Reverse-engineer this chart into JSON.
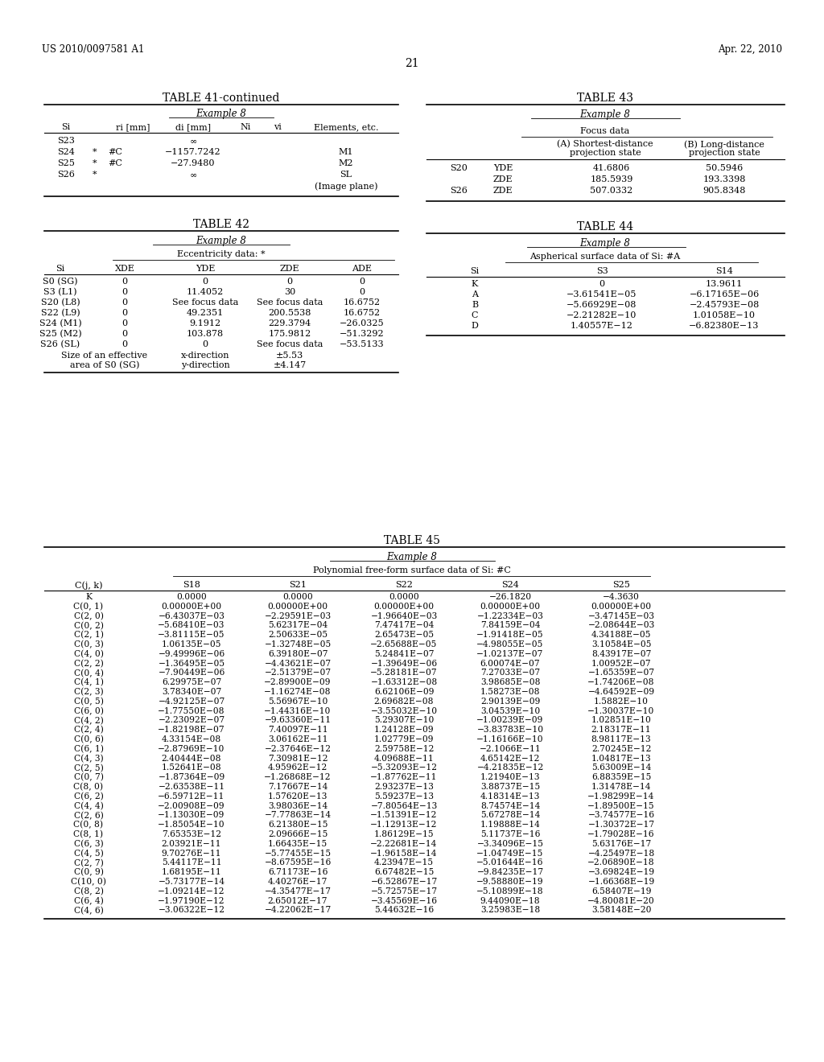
{
  "patent_left": "US 2010/0097581 A1",
  "patent_right": "Apr. 22, 2010",
  "page_number": "21",
  "bg": "#ffffff",
  "t41_rows": [
    [
      "S23",
      "",
      "",
      "∞",
      "",
      "",
      ""
    ],
    [
      "S24",
      "*",
      "#C",
      "−1157.7242",
      "",
      "",
      "M1"
    ],
    [
      "S25",
      "*",
      "#C",
      "−27.9480",
      "",
      "",
      "M2"
    ],
    [
      "S26",
      "*",
      "",
      "∞",
      "",
      "",
      "SL"
    ]
  ],
  "t42_rows": [
    [
      "S0 (SG)",
      "0",
      "0",
      "0",
      "0"
    ],
    [
      "S3 (L1)",
      "0",
      "11.4052",
      "30",
      "0"
    ],
    [
      "S20 (L8)",
      "0",
      "See focus data",
      "See focus data",
      "16.6752"
    ],
    [
      "S22 (L9)",
      "0",
      "49.2351",
      "200.5538",
      "16.6752"
    ],
    [
      "S24 (M1)",
      "0",
      "9.1912",
      "229.3794",
      "−26.0325"
    ],
    [
      "S25 (M2)",
      "0",
      "103.878",
      "175.9812",
      "−51.3292"
    ],
    [
      "S26 (SL)",
      "0",
      "0",
      "See focus data",
      "−53.5133"
    ]
  ],
  "t43_rows": [
    [
      "S20",
      "YDE",
      "41.6806",
      "50.5946"
    ],
    [
      "",
      "ZDE",
      "185.5939",
      "193.3398"
    ],
    [
      "S26",
      "ZDE",
      "507.0332",
      "905.8348"
    ]
  ],
  "t44_rows": [
    [
      "K",
      "0",
      "13.9611"
    ],
    [
      "A",
      "−3.61541E−05",
      "−6.17165E−06"
    ],
    [
      "B",
      "−5.66929E−08",
      "−2.45793E−08"
    ],
    [
      "C",
      "−2.21282E−10",
      "1.01058E−10"
    ],
    [
      "D",
      "1.40557E−12",
      "−6.82380E−13"
    ]
  ],
  "t45_rows": [
    [
      "K",
      "0.0000",
      "0.0000",
      "0.0000",
      "−26.1820",
      "−4.3630"
    ],
    [
      "C(0, 1)",
      "0.00000E+00",
      "0.00000E+00",
      "0.00000E+00",
      "0.00000E+00",
      "0.00000E+00"
    ],
    [
      "C(2, 0)",
      "−6.43037E−03",
      "−2.29591E−03",
      "−1.96640E−03",
      "−1.22334E−03",
      "−3.47145E−03"
    ],
    [
      "C(0, 2)",
      "−5.68410E−03",
      "5.62317E−04",
      "7.47417E−04",
      "7.84159E−04",
      "−2.08644E−03"
    ],
    [
      "C(2, 1)",
      "−3.81115E−05",
      "2.50633E−05",
      "2.65473E−05",
      "−1.91418E−05",
      "4.34188E−05"
    ],
    [
      "C(0, 3)",
      "1.06135E−05",
      "−1.32748E−05",
      "−2.65688E−05",
      "−4.98055E−05",
      "3.10584E−05"
    ],
    [
      "C(4, 0)",
      "−9.49996E−06",
      "6.39180E−07",
      "5.24841E−07",
      "−1.02137E−07",
      "8.43917E−07"
    ],
    [
      "C(2, 2)",
      "−1.36495E−05",
      "−4.43621E−07",
      "−1.39649E−06",
      "6.00074E−07",
      "1.00952E−07"
    ],
    [
      "C(0, 4)",
      "−7.90449E−06",
      "−2.51379E−07",
      "−5.28181E−07",
      "7.27033E−07",
      "−1.65359E−07"
    ],
    [
      "C(4, 1)",
      "6.29975E−07",
      "−2.89900E−09",
      "−1.63312E−08",
      "3.98685E−08",
      "−1.74206E−08"
    ],
    [
      "C(2, 3)",
      "3.78340E−07",
      "−1.16274E−08",
      "6.62106E−09",
      "1.58273E−08",
      "−4.64592E−09"
    ],
    [
      "C(0, 5)",
      "−4.92125E−07",
      "5.56967E−10",
      "2.69682E−08",
      "2.90139E−09",
      "1.5882E−10"
    ],
    [
      "C(6, 0)",
      "−1.77550E−08",
      "−1.44316E−10",
      "−3.55032E−10",
      "3.04539E−10",
      "−1.30037E−10"
    ],
    [
      "C(4, 2)",
      "−2.23092E−07",
      "−9.63360E−11",
      "5.29307E−10",
      "−1.00239E−09",
      "1.02851E−10"
    ],
    [
      "C(2, 4)",
      "−1.82198E−07",
      "7.40097E−11",
      "1.24128E−09",
      "−3.83783E−10",
      "2.18317E−11"
    ],
    [
      "C(0, 6)",
      "4.33154E−08",
      "3.06162E−11",
      "1.02779E−09",
      "−1.16166E−10",
      "8.98117E−13"
    ],
    [
      "C(6, 1)",
      "−2.87969E−10",
      "−2.37646E−12",
      "2.59758E−12",
      "−2.1066E−11",
      "2.70245E−12"
    ],
    [
      "C(4, 3)",
      "2.40444E−08",
      "7.30981E−12",
      "4.09688E−11",
      "4.65142E−12",
      "1.04817E−13"
    ],
    [
      "C(2, 5)",
      "1.52641E−08",
      "4.95962E−12",
      "−5.32093E−12",
      "−4.21835E−12",
      "5.63009E−14"
    ],
    [
      "C(0, 7)",
      "−1.87364E−09",
      "−1.26868E−12",
      "−1.87762E−11",
      "1.21940E−13",
      "6.88359E−15"
    ],
    [
      "C(8, 0)",
      "−2.63538E−11",
      "7.17667E−14",
      "2.93237E−13",
      "3.88737E−15",
      "1.31478E−14"
    ],
    [
      "C(6, 2)",
      "−6.59712E−11",
      "1.57620E−13",
      "5.59237E−13",
      "4.18314E−13",
      "−1.98299E−14"
    ],
    [
      "C(4, 4)",
      "−2.00908E−09",
      "3.98036E−14",
      "−7.80564E−13",
      "8.74574E−14",
      "−1.89500E−15"
    ],
    [
      "C(2, 6)",
      "−1.13030E−09",
      "−7.77863E−14",
      "−1.51391E−12",
      "5.67278E−14",
      "−3.74577E−16"
    ],
    [
      "C(0, 8)",
      "−1.85054E−10",
      "6.21380E−15",
      "−1.12913E−12",
      "1.19888E−14",
      "−1.30372E−17"
    ],
    [
      "C(8, 1)",
      "7.65353E−12",
      "2.09666E−15",
      "1.86129E−15",
      "5.11737E−16",
      "−1.79028E−16"
    ],
    [
      "C(6, 3)",
      "2.03921E−11",
      "1.66435E−15",
      "−2.22681E−14",
      "−3.34096E−15",
      "5.63176E−17"
    ],
    [
      "C(4, 5)",
      "9.70276E−11",
      "−5.77455E−15",
      "−1.96158E−14",
      "−1.04749E−15",
      "−4.25497E−18"
    ],
    [
      "C(2, 7)",
      "5.44117E−11",
      "−8.67595E−16",
      "4.23947E−15",
      "−5.01644E−16",
      "−2.06890E−18"
    ],
    [
      "C(0, 9)",
      "1.68195E−11",
      "6.71173E−16",
      "6.67482E−15",
      "−9.84235E−17",
      "−3.69824E−19"
    ],
    [
      "C(10, 0)",
      "−5.73177E−14",
      "4.40276E−17",
      "−6.52867E−17",
      "−9.58880E−19",
      "−1.66368E−19"
    ],
    [
      "C(8, 2)",
      "−1.09214E−12",
      "−4.35477E−17",
      "−5.72575E−17",
      "−5.10899E−18",
      "6.58407E−19"
    ],
    [
      "C(6, 4)",
      "−1.97190E−12",
      "2.65012E−17",
      "−3.45569E−16",
      "9.44090E−18",
      "−4.80081E−20"
    ],
    [
      "C(4, 6)",
      "−3.06322E−12",
      "−4.22062E−17",
      "5.44632E−16",
      "3.25983E−18",
      "3.58148E−20"
    ]
  ]
}
